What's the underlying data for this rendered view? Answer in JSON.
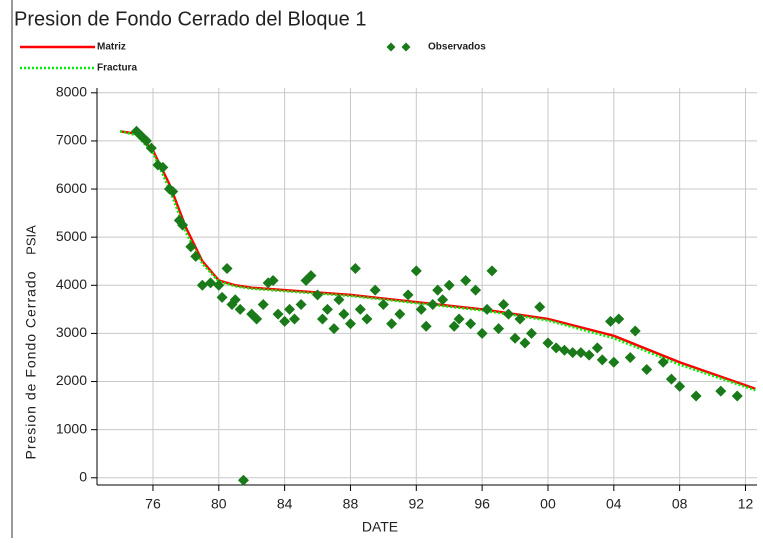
{
  "chart_data": {
    "type": "line",
    "title": "Presion de Fondo Cerrado del Bloque 1",
    "x_label": "DATE",
    "y_label": "Presion de Fondo Cerrado",
    "y_unit": "PSIA",
    "xlim": [
      1972.6,
      2012.7
    ],
    "ylim": [
      -150,
      8100
    ],
    "xticks": [
      {
        "value": 1976,
        "label": "76"
      },
      {
        "value": 1980,
        "label": "80"
      },
      {
        "value": 1984,
        "label": "84"
      },
      {
        "value": 1988,
        "label": "88"
      },
      {
        "value": 1992,
        "label": "92"
      },
      {
        "value": 1996,
        "label": "96"
      },
      {
        "value": 2000,
        "label": "00"
      },
      {
        "value": 2004,
        "label": "04"
      },
      {
        "value": 2008,
        "label": "08"
      },
      {
        "value": 2012,
        "label": "12"
      }
    ],
    "yticks": [
      0,
      1000,
      2000,
      3000,
      4000,
      5000,
      6000,
      7000,
      8000
    ],
    "grid": true,
    "series": [
      {
        "name": "Matriz",
        "color": "#ff0000",
        "style": "solid",
        "x": [
          1974,
          1975,
          1976,
          1977,
          1978,
          1979,
          1980,
          1981,
          1982,
          1984,
          1988,
          1992,
          1996,
          2000,
          2004,
          2008,
          2012.6
        ],
        "values": [
          7200,
          7150,
          6800,
          6100,
          5200,
          4500,
          4100,
          4000,
          3950,
          3900,
          3800,
          3650,
          3500,
          3300,
          2950,
          2400,
          1850
        ]
      },
      {
        "name": "Fractura",
        "color": "#00ee00",
        "style": "dotted",
        "x": [
          1974,
          1975,
          1976,
          1977,
          1978,
          1979,
          1980,
          1981,
          1982,
          1984,
          1988,
          1992,
          1996,
          2000,
          2004,
          2008,
          2012.6
        ],
        "values": [
          7200,
          7120,
          6750,
          6000,
          5100,
          4450,
          4080,
          3980,
          3930,
          3880,
          3780,
          3630,
          3480,
          3270,
          2900,
          2350,
          1820
        ]
      },
      {
        "name": "Observados",
        "color": "#1a7a1a",
        "style": "markers",
        "x": [
          1975.0,
          1975.3,
          1975.6,
          1975.9,
          1976.3,
          1976.6,
          1977.0,
          1977.2,
          1977.6,
          1977.8,
          1978.3,
          1978.6,
          1979.0,
          1979.5,
          1980.0,
          1980.2,
          1980.5,
          1980.8,
          1981.0,
          1981.3,
          1981.5,
          1982.0,
          1982.3,
          1982.7,
          1983.0,
          1983.3,
          1983.6,
          1984.0,
          1984.3,
          1984.6,
          1985.0,
          1985.3,
          1985.6,
          1986.0,
          1986.3,
          1986.6,
          1987.0,
          1987.3,
          1987.6,
          1988.0,
          1988.3,
          1988.6,
          1989.0,
          1989.5,
          1990.0,
          1990.5,
          1991.0,
          1991.5,
          1992.0,
          1992.3,
          1992.6,
          1993.0,
          1993.3,
          1993.6,
          1994.0,
          1994.3,
          1994.6,
          1995.0,
          1995.3,
          1995.6,
          1996.0,
          1996.3,
          1996.6,
          1997.0,
          1997.3,
          1997.6,
          1998.0,
          1998.3,
          1998.6,
          1999.0,
          1999.5,
          2000.0,
          2000.5,
          2001.0,
          2001.5,
          2002.0,
          2002.5,
          2003.0,
          2003.3,
          2003.8,
          2004.0,
          2004.3,
          2005.0,
          2005.3,
          2006.0,
          2007.0,
          2007.5,
          2008.0,
          2009.0,
          2010.5,
          2011.5
        ],
        "values": [
          7200,
          7100,
          7000,
          6850,
          6500,
          6450,
          6000,
          5950,
          5350,
          5250,
          4800,
          4600,
          4000,
          4050,
          4000,
          3750,
          4350,
          3600,
          3700,
          3500,
          -50,
          3400,
          3300,
          3600,
          4050,
          4100,
          3400,
          3250,
          3500,
          3300,
          3600,
          4100,
          4200,
          3800,
          3300,
          3500,
          3100,
          3700,
          3400,
          3200,
          4350,
          3500,
          3300,
          3900,
          3600,
          3200,
          3400,
          3800,
          4300,
          3500,
          3150,
          3600,
          3900,
          3700,
          4000,
          3150,
          3300,
          4100,
          3200,
          3900,
          3000,
          3500,
          4300,
          3100,
          3600,
          3400,
          2900,
          3300,
          2800,
          3000,
          3550,
          2800,
          2700,
          2650,
          2600,
          2600,
          2550,
          2700,
          2450,
          3250,
          2400,
          3300,
          2500,
          3050,
          2250,
          2400,
          2050,
          1900,
          1700,
          1800,
          1700
        ]
      }
    ]
  }
}
